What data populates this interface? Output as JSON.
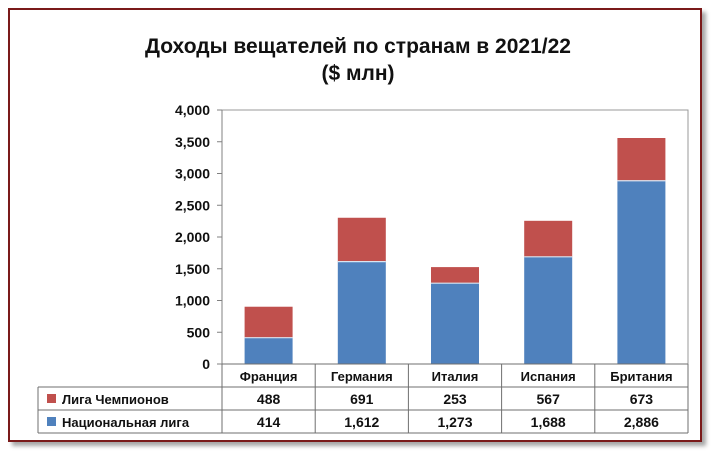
{
  "chart_data": {
    "type": "bar",
    "stacked": true,
    "title": "Доходы вещателей по странам в 2021/22",
    "subtitle": "($ млн)",
    "categories": [
      "Франция",
      "Германия",
      "Италия",
      "Испания",
      "Британия"
    ],
    "series": [
      {
        "name": "Национальная лига",
        "values": [
          414,
          1612,
          1273,
          1688,
          2886
        ],
        "value_labels": [
          "414",
          "1,612",
          "1,273",
          "1,688",
          "2,886"
        ],
        "color": "#4f81bd"
      },
      {
        "name": "Лига Чемпионов",
        "values": [
          488,
          691,
          253,
          567,
          673
        ],
        "value_labels": [
          "488",
          "691",
          "253",
          "567",
          "673"
        ],
        "color": "#c0504d"
      }
    ],
    "ylim": [
      0,
      4000
    ],
    "yticks": [
      0,
      500,
      1000,
      1500,
      2000,
      2500,
      3000,
      3500,
      4000
    ],
    "ytick_labels": [
      "0",
      "500",
      "1,000",
      "1,500",
      "2,000",
      "2,500",
      "3,000",
      "3,500",
      "4,000"
    ],
    "grid": false,
    "legend": "data-table-below",
    "table_row_order": [
      "Лига Чемпионов",
      "Национальная лига"
    ]
  }
}
